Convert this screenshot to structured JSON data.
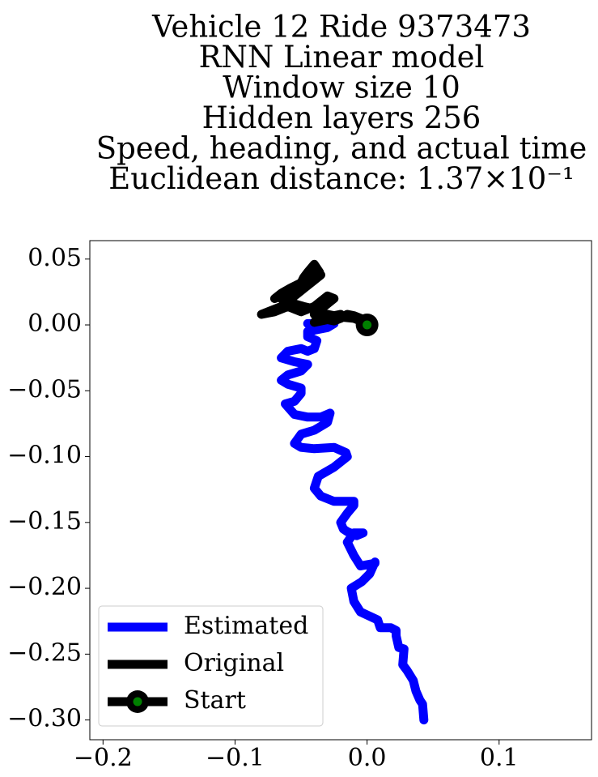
{
  "chart_data": {
    "type": "line",
    "title_lines": [
      "Vehicle 12 Ride 9373473",
      "RNN Linear model",
      "Window size 10",
      "Hidden layers 256",
      "Speed, heading, and actual time",
      "Euclidean distance: 1.37×10⁻¹"
    ],
    "xlabel": "",
    "ylabel": "",
    "xlim": [
      -0.21,
      0.17
    ],
    "ylim": [
      -0.315,
      0.064
    ],
    "x_ticks": [
      -0.2,
      -0.1,
      0.0,
      0.1
    ],
    "x_tick_labels": [
      "−0.2",
      "−0.1",
      "0.0",
      "0.1"
    ],
    "y_ticks": [
      0.05,
      0.0,
      -0.05,
      -0.1,
      -0.15,
      -0.2,
      -0.25,
      -0.3
    ],
    "y_tick_labels": [
      "0.05",
      "0.00",
      "−0.05",
      "−0.10",
      "−0.15",
      "−0.20",
      "−0.25",
      "−0.30"
    ],
    "grid": false,
    "legend_position": "lower-left",
    "series": [
      {
        "name": "Estimated",
        "color": "#0000ff",
        "x": [
          0.043,
          0.042,
          0.04,
          0.037,
          0.035,
          0.03,
          0.027,
          0.028,
          0.024,
          0.022,
          0.022,
          0.018,
          0.01,
          0.008,
          -0.005,
          -0.01,
          -0.012,
          -0.004,
          0.002,
          0.006,
          0.006,
          -0.005,
          -0.01,
          -0.015,
          -0.01,
          -0.007,
          -0.003,
          -0.008,
          -0.015,
          -0.018,
          -0.02,
          -0.015,
          -0.01,
          -0.01,
          -0.025,
          -0.035,
          -0.04,
          -0.037,
          -0.025,
          -0.015,
          -0.016,
          -0.025,
          -0.04,
          -0.05,
          -0.055,
          -0.05,
          -0.04,
          -0.03,
          -0.028,
          -0.035,
          -0.045,
          -0.055,
          -0.062,
          -0.055,
          -0.05,
          -0.05,
          -0.06,
          -0.065,
          -0.06,
          -0.05,
          -0.045,
          -0.055,
          -0.065,
          -0.06,
          -0.05,
          -0.045,
          -0.04,
          -0.038,
          -0.045,
          -0.045,
          -0.03,
          -0.025,
          -0.035,
          -0.045
        ],
        "y": [
          -0.3,
          -0.288,
          -0.285,
          -0.278,
          -0.27,
          -0.262,
          -0.258,
          -0.246,
          -0.245,
          -0.236,
          -0.232,
          -0.23,
          -0.23,
          -0.224,
          -0.218,
          -0.21,
          -0.2,
          -0.195,
          -0.189,
          -0.18,
          -0.181,
          -0.183,
          -0.175,
          -0.165,
          -0.158,
          -0.158,
          -0.158,
          -0.16,
          -0.157,
          -0.155,
          -0.15,
          -0.143,
          -0.137,
          -0.134,
          -0.134,
          -0.13,
          -0.124,
          -0.115,
          -0.108,
          -0.1,
          -0.097,
          -0.093,
          -0.094,
          -0.093,
          -0.09,
          -0.083,
          -0.08,
          -0.074,
          -0.067,
          -0.07,
          -0.07,
          -0.068,
          -0.06,
          -0.058,
          -0.052,
          -0.048,
          -0.045,
          -0.042,
          -0.038,
          -0.035,
          -0.03,
          -0.028,
          -0.025,
          -0.02,
          -0.018,
          -0.02,
          -0.018,
          -0.012,
          -0.009,
          -0.005,
          -0.002,
          0.001,
          0.001,
          0.001
        ]
      },
      {
        "name": "Original",
        "color": "#000000",
        "x": [
          0.0,
          -0.005,
          -0.01,
          -0.015,
          -0.02,
          -0.025,
          -0.03,
          -0.035,
          -0.04,
          -0.035,
          -0.03,
          -0.025,
          -0.03,
          -0.035,
          -0.04,
          -0.045,
          -0.05,
          -0.055,
          -0.06,
          -0.065,
          -0.07,
          -0.075,
          -0.08,
          -0.075,
          -0.065,
          -0.06,
          -0.055,
          -0.05,
          -0.045,
          -0.04,
          -0.035,
          -0.04,
          -0.045,
          -0.05,
          -0.055,
          -0.06,
          -0.065,
          -0.07,
          -0.065,
          -0.058,
          -0.05,
          -0.043,
          -0.036,
          -0.04,
          -0.045,
          -0.048,
          -0.05,
          -0.055,
          -0.06,
          -0.065,
          -0.062,
          -0.055,
          -0.048,
          -0.04,
          -0.035,
          -0.03,
          -0.025,
          -0.02,
          -0.03,
          -0.038,
          -0.04,
          -0.03,
          -0.02,
          -0.01,
          -0.005,
          0.0
        ],
        "y": [
          0.0,
          0.005,
          0.007,
          0.008,
          0.005,
          0.003,
          0.004,
          0.006,
          0.008,
          0.012,
          0.016,
          0.02,
          0.022,
          0.018,
          0.014,
          0.012,
          0.01,
          0.012,
          0.014,
          0.012,
          0.01,
          0.009,
          0.008,
          0.01,
          0.014,
          0.018,
          0.022,
          0.026,
          0.03,
          0.034,
          0.038,
          0.034,
          0.03,
          0.028,
          0.026,
          0.024,
          0.022,
          0.02,
          0.024,
          0.028,
          0.032,
          0.036,
          0.04,
          0.046,
          0.04,
          0.036,
          0.032,
          0.028,
          0.024,
          0.02,
          0.018,
          0.016,
          0.014,
          0.012,
          0.01,
          0.008,
          0.007,
          0.008,
          0.006,
          0.004,
          0.002,
          0.004,
          0.006,
          0.005,
          0.003,
          0.0
        ]
      }
    ],
    "start": {
      "name": "Start",
      "x": 0.0,
      "y": 0.0,
      "ring_color": "#000000",
      "center_color": "#008000"
    }
  }
}
